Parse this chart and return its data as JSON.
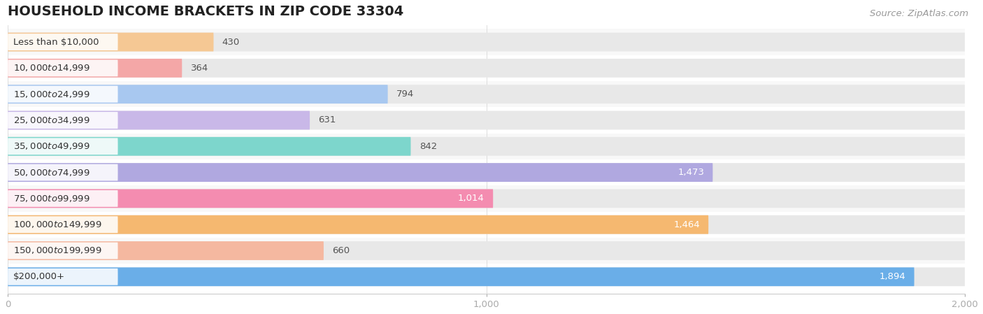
{
  "title": "HOUSEHOLD INCOME BRACKETS IN ZIP CODE 33304",
  "source": "Source: ZipAtlas.com",
  "categories": [
    "Less than $10,000",
    "$10,000 to $14,999",
    "$15,000 to $24,999",
    "$25,000 to $34,999",
    "$35,000 to $49,999",
    "$50,000 to $74,999",
    "$75,000 to $99,999",
    "$100,000 to $149,999",
    "$150,000 to $199,999",
    "$200,000+"
  ],
  "values": [
    430,
    364,
    794,
    631,
    842,
    1473,
    1014,
    1464,
    660,
    1894
  ],
  "bar_colors": [
    "#f5c894",
    "#f4a7a7",
    "#a8c8f0",
    "#c9b8e8",
    "#7dd6cc",
    "#b0a8e0",
    "#f48cb0",
    "#f5b870",
    "#f5b8a0",
    "#6aaee8"
  ],
  "background_color": "#ffffff",
  "row_bg_color": "#f7f7f7",
  "bar_background_color": "#e8e8e8",
  "xlim": [
    0,
    2000
  ],
  "xticks": [
    0,
    1000,
    2000
  ],
  "label_color_inside": "#ffffff",
  "label_color_outside": "#555555",
  "title_fontsize": 14,
  "label_fontsize": 9.5,
  "cat_fontsize": 9.5,
  "tick_fontsize": 9.5,
  "source_fontsize": 9.5,
  "inside_threshold": 900
}
